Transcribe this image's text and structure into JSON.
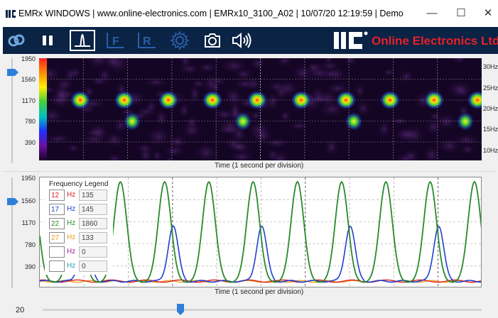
{
  "window": {
    "title": "EMRx WINDOWS | www.online-electronics.com | EMRx10_3100_A02 | 10/07/20 12:19:59 | Demo",
    "controls": [
      "—",
      "☐",
      "✕"
    ]
  },
  "toolbar": {
    "buttons": [
      {
        "icon": "link-icon",
        "label": ""
      },
      {
        "icon": "pause-icon",
        "label": ""
      },
      {
        "icon": "waveform-icon",
        "label": ""
      },
      {
        "icon": "f-filter-icon",
        "label": "F"
      },
      {
        "icon": "r-filter-icon",
        "label": "R"
      },
      {
        "icon": "gear-icon",
        "label": ""
      },
      {
        "icon": "camera-icon",
        "label": ""
      },
      {
        "icon": "speaker-icon",
        "label": ""
      }
    ],
    "brand": "Online Electronics Ltd",
    "accent": "#e8202a",
    "background": "#0b2345"
  },
  "spectrogram": {
    "y_ticks": [
      "1950",
      "1560",
      "1170",
      "780",
      "390"
    ],
    "hz_ticks": [
      "30Hz",
      "25Hz",
      "20Hz",
      "15Hz",
      "10Hz"
    ],
    "time_label": "Time (1 second per division)"
  },
  "trend": {
    "y_ticks": [
      "1950",
      "1560",
      "1170",
      "780",
      "390"
    ],
    "time_label": "Time (1 second per division)",
    "legend": {
      "title": "Frequency Legend",
      "rows": [
        {
          "freq": "12",
          "unit": "Hz",
          "value": "135",
          "color": "#e02020"
        },
        {
          "freq": "17",
          "unit": "Hz",
          "value": "145",
          "color": "#2040d0"
        },
        {
          "freq": "22",
          "unit": "Hz",
          "value": "1860",
          "color": "#2a8a2a"
        },
        {
          "freq": "27",
          "unit": "Hz",
          "value": "133",
          "color": "#e8a020"
        },
        {
          "freq": "",
          "unit": "Hz",
          "value": "0",
          "color": "#a020a0"
        },
        {
          "freq": "",
          "unit": "Hz",
          "value": "0",
          "color": "#20a0b0"
        }
      ]
    }
  },
  "scale_slider": {
    "value": "20"
  }
}
